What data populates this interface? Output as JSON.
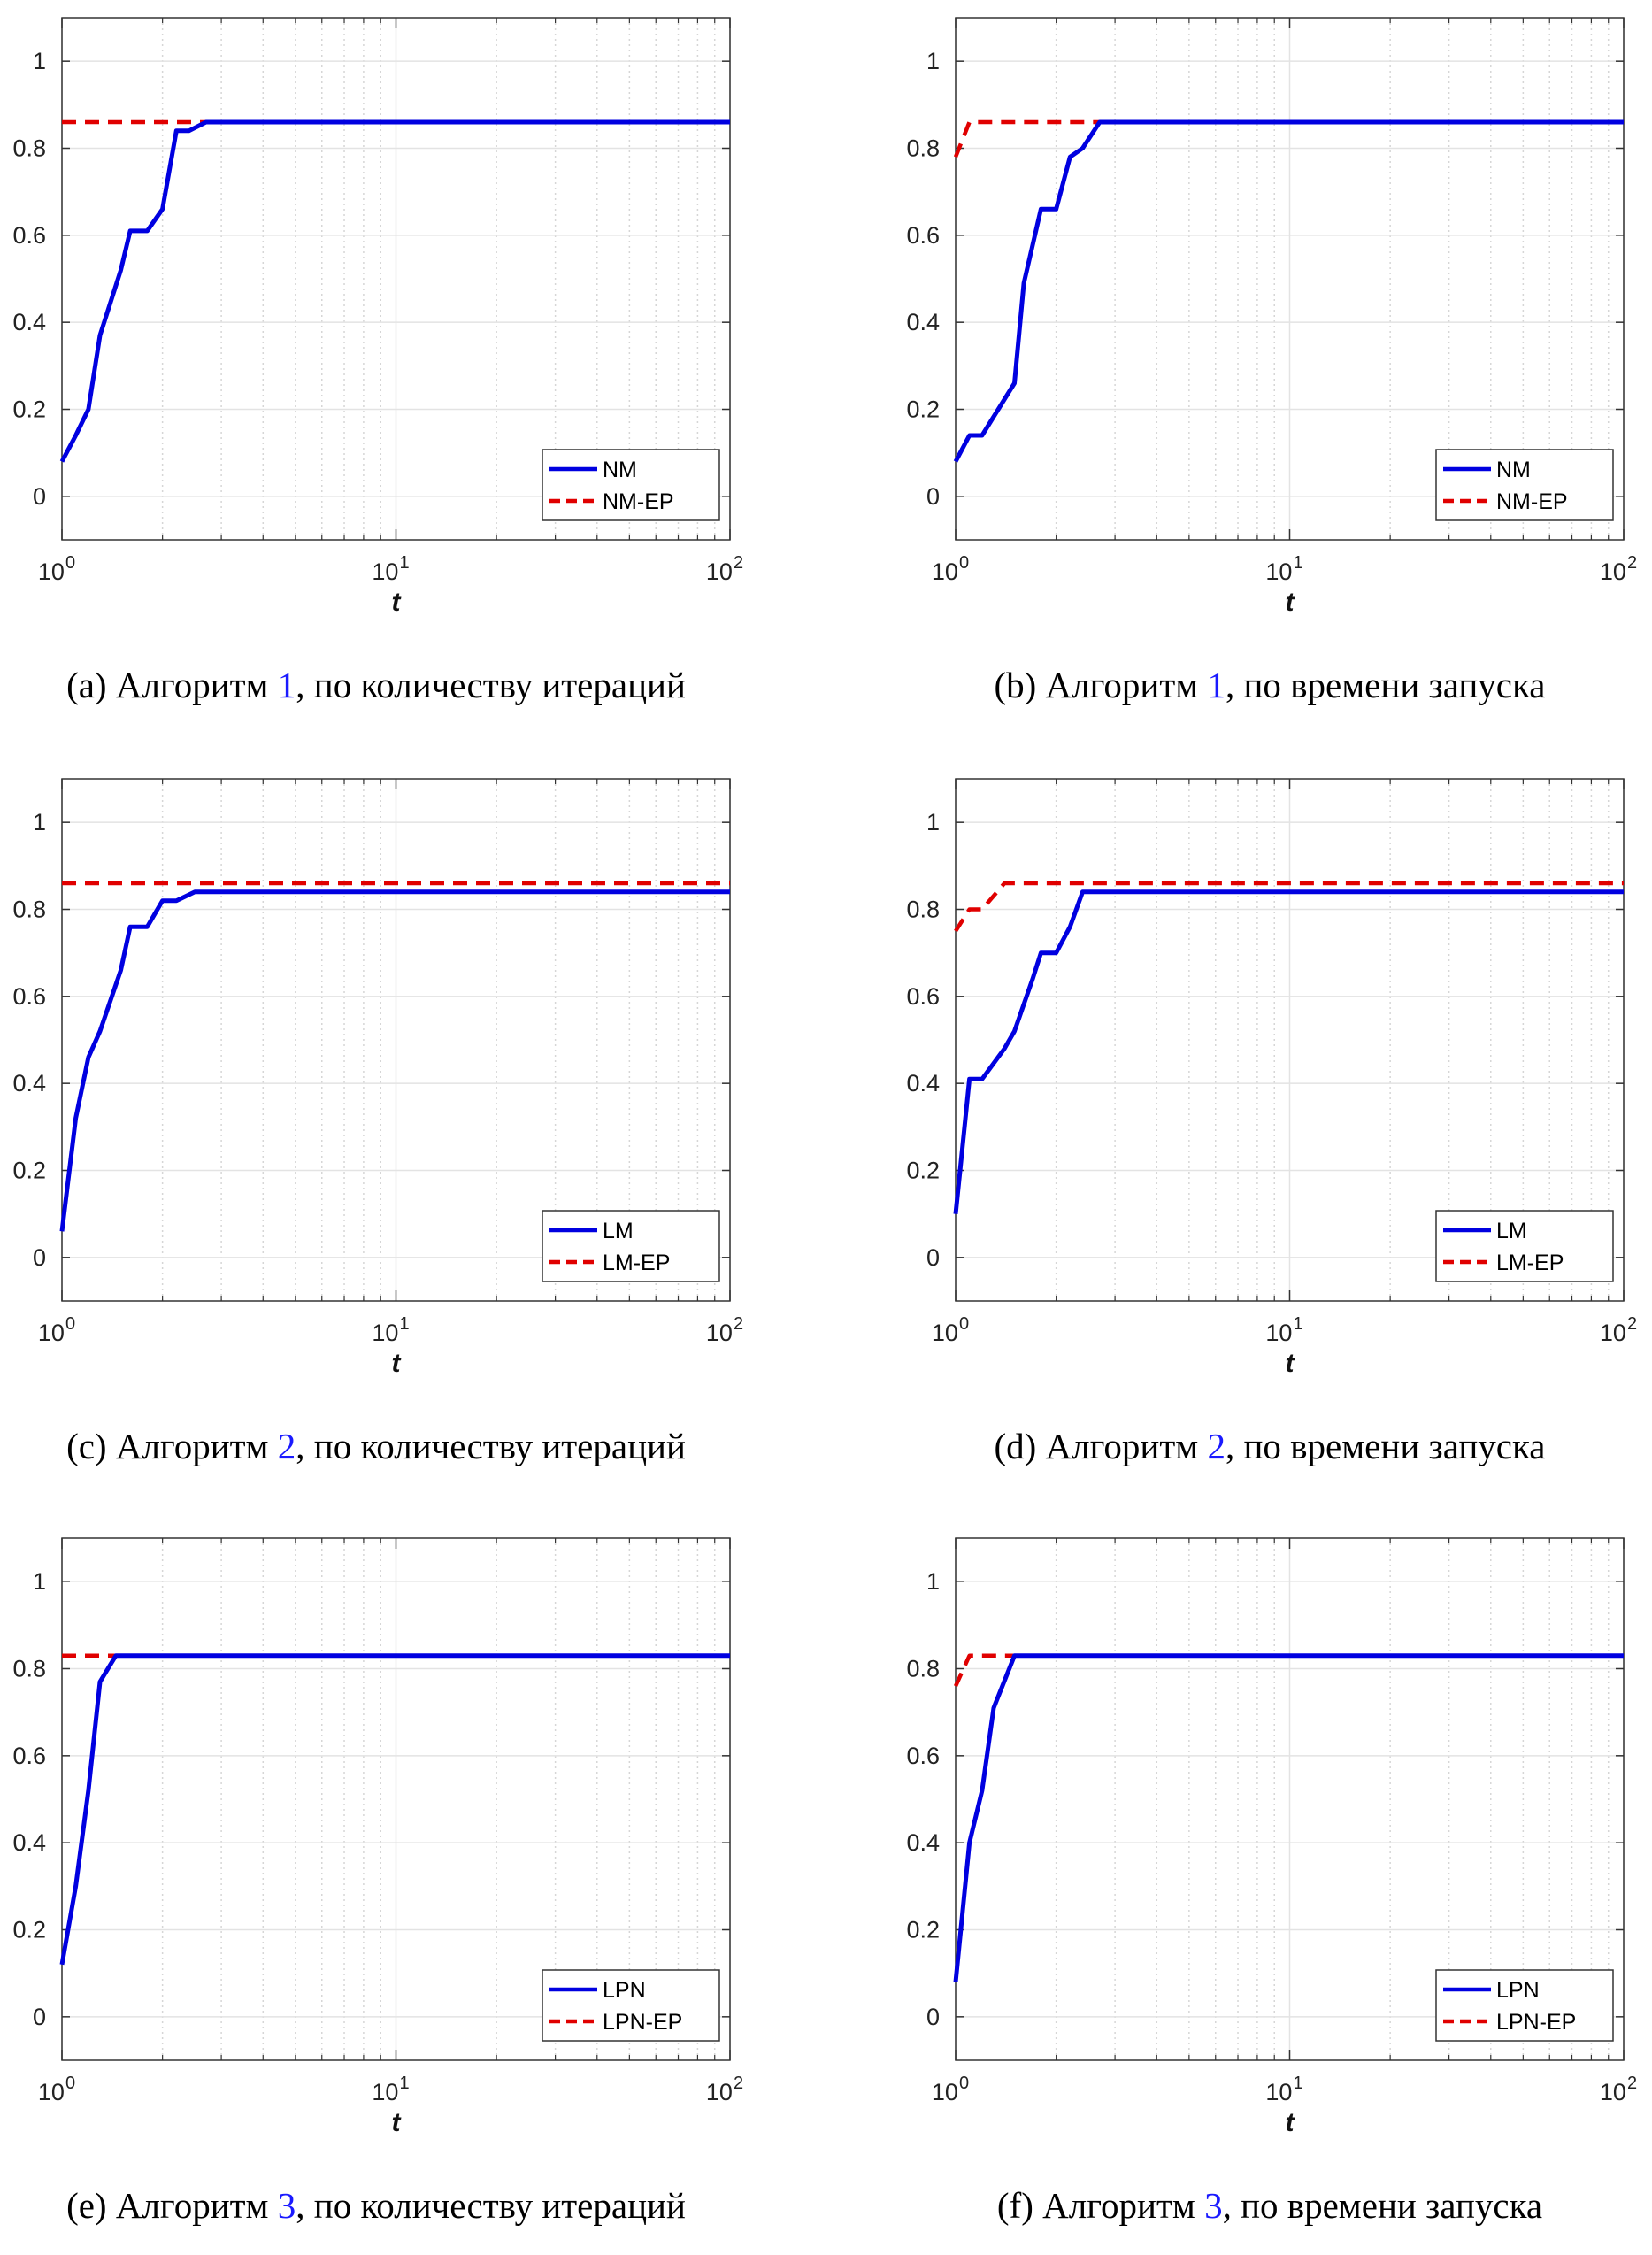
{
  "chart_data": [
    {
      "type": "line",
      "caption": {
        "prefix": "(a) Алгоритм ",
        "ref": "1",
        "suffix": ", по количеству итераций"
      },
      "xlabel": "t",
      "xscale": "log",
      "xlim": [
        1,
        100
      ],
      "ylim": [
        -0.1,
        1.1
      ],
      "yticks": [
        "0",
        "0.2",
        "0.4",
        "0.6",
        "0.8",
        "1"
      ],
      "xticks": [
        {
          "base": "10",
          "exp": "0"
        },
        {
          "base": "10",
          "exp": "1"
        },
        {
          "base": "10",
          "exp": "2"
        }
      ],
      "grid": true,
      "legend_position": "bottom-right",
      "series": [
        {
          "name": "NM",
          "color": "#0000e0",
          "dash": "solid",
          "points": [
            [
              1,
              0.08
            ],
            [
              1.1,
              0.14
            ],
            [
              1.2,
              0.2
            ],
            [
              1.3,
              0.37
            ],
            [
              1.5,
              0.52
            ],
            [
              1.6,
              0.61
            ],
            [
              1.8,
              0.61
            ],
            [
              2.0,
              0.66
            ],
            [
              2.2,
              0.84
            ],
            [
              2.4,
              0.84
            ],
            [
              2.7,
              0.86
            ],
            [
              100,
              0.86
            ]
          ]
        },
        {
          "name": "NM-EP",
          "color": "#e00000",
          "dash": "dashed",
          "points": [
            [
              1,
              0.86
            ],
            [
              100,
              0.86
            ]
          ]
        }
      ]
    },
    {
      "type": "line",
      "caption": {
        "prefix": "(b) Алгоритм ",
        "ref": "1",
        "suffix": ", по времени запуска"
      },
      "xlabel": "t",
      "xscale": "log",
      "xlim": [
        1,
        100
      ],
      "ylim": [
        -0.1,
        1.1
      ],
      "yticks": [
        "0",
        "0.2",
        "0.4",
        "0.6",
        "0.8",
        "1"
      ],
      "xticks": [
        {
          "base": "10",
          "exp": "0"
        },
        {
          "base": "10",
          "exp": "1"
        },
        {
          "base": "10",
          "exp": "2"
        }
      ],
      "grid": true,
      "legend_position": "bottom-right",
      "series": [
        {
          "name": "NM",
          "color": "#0000e0",
          "dash": "solid",
          "points": [
            [
              1,
              0.08
            ],
            [
              1.1,
              0.14
            ],
            [
              1.2,
              0.14
            ],
            [
              1.5,
              0.26
            ],
            [
              1.6,
              0.49
            ],
            [
              1.8,
              0.66
            ],
            [
              2.0,
              0.66
            ],
            [
              2.2,
              0.78
            ],
            [
              2.4,
              0.8
            ],
            [
              2.7,
              0.86
            ],
            [
              100,
              0.86
            ]
          ]
        },
        {
          "name": "NM-EP",
          "color": "#e00000",
          "dash": "dashed",
          "points": [
            [
              1,
              0.78
            ],
            [
              1.1,
              0.86
            ],
            [
              100,
              0.86
            ]
          ]
        }
      ]
    },
    {
      "type": "line",
      "caption": {
        "prefix": "(c) Алгоритм ",
        "ref": "2",
        "suffix": ", по количеству итераций"
      },
      "xlabel": "t",
      "xscale": "log",
      "xlim": [
        1,
        100
      ],
      "ylim": [
        -0.1,
        1.1
      ],
      "yticks": [
        "0",
        "0.2",
        "0.4",
        "0.6",
        "0.8",
        "1"
      ],
      "xticks": [
        {
          "base": "10",
          "exp": "0"
        },
        {
          "base": "10",
          "exp": "1"
        },
        {
          "base": "10",
          "exp": "2"
        }
      ],
      "grid": true,
      "legend_position": "bottom-right",
      "series": [
        {
          "name": "LM",
          "color": "#0000e0",
          "dash": "solid",
          "points": [
            [
              1,
              0.06
            ],
            [
              1.1,
              0.32
            ],
            [
              1.2,
              0.46
            ],
            [
              1.3,
              0.52
            ],
            [
              1.5,
              0.66
            ],
            [
              1.6,
              0.76
            ],
            [
              1.8,
              0.76
            ],
            [
              2.0,
              0.82
            ],
            [
              2.2,
              0.82
            ],
            [
              2.5,
              0.84
            ],
            [
              100,
              0.84
            ]
          ]
        },
        {
          "name": "LM-EP",
          "color": "#e00000",
          "dash": "dashed",
          "points": [
            [
              1,
              0.86
            ],
            [
              100,
              0.86
            ]
          ]
        }
      ]
    },
    {
      "type": "line",
      "caption": {
        "prefix": "(d) Алгоритм ",
        "ref": "2",
        "suffix": ", по времени запуска"
      },
      "xlabel": "t",
      "xscale": "log",
      "xlim": [
        1,
        100
      ],
      "ylim": [
        -0.1,
        1.1
      ],
      "yticks": [
        "0",
        "0.2",
        "0.4",
        "0.6",
        "0.8",
        "1"
      ],
      "xticks": [
        {
          "base": "10",
          "exp": "0"
        },
        {
          "base": "10",
          "exp": "1"
        },
        {
          "base": "10",
          "exp": "2"
        }
      ],
      "grid": true,
      "legend_position": "bottom-right",
      "series": [
        {
          "name": "LM",
          "color": "#0000e0",
          "dash": "solid",
          "points": [
            [
              1,
              0.1
            ],
            [
              1.1,
              0.41
            ],
            [
              1.2,
              0.41
            ],
            [
              1.4,
              0.48
            ],
            [
              1.5,
              0.52
            ],
            [
              1.7,
              0.64
            ],
            [
              1.8,
              0.7
            ],
            [
              2.0,
              0.7
            ],
            [
              2.2,
              0.76
            ],
            [
              2.4,
              0.84
            ],
            [
              100,
              0.84
            ]
          ]
        },
        {
          "name": "LM-EP",
          "color": "#e00000",
          "dash": "dashed",
          "points": [
            [
              1,
              0.75
            ],
            [
              1.1,
              0.8
            ],
            [
              1.2,
              0.8
            ],
            [
              1.4,
              0.86
            ],
            [
              100,
              0.86
            ]
          ]
        }
      ]
    },
    {
      "type": "line",
      "caption": {
        "prefix": "(e) Алгоритм ",
        "ref": "3",
        "suffix": ", по количеству итераций"
      },
      "xlabel": "t",
      "xscale": "log",
      "xlim": [
        1,
        100
      ],
      "ylim": [
        -0.1,
        1.1
      ],
      "yticks": [
        "0",
        "0.2",
        "0.4",
        "0.6",
        "0.8",
        "1"
      ],
      "xticks": [
        {
          "base": "10",
          "exp": "0"
        },
        {
          "base": "10",
          "exp": "1"
        },
        {
          "base": "10",
          "exp": "2"
        }
      ],
      "grid": true,
      "legend_position": "bottom-right",
      "series": [
        {
          "name": "LPN",
          "color": "#0000e0",
          "dash": "solid",
          "points": [
            [
              1,
              0.12
            ],
            [
              1.1,
              0.3
            ],
            [
              1.2,
              0.52
            ],
            [
              1.3,
              0.77
            ],
            [
              1.45,
              0.83
            ],
            [
              100,
              0.83
            ]
          ]
        },
        {
          "name": "LPN-EP",
          "color": "#e00000",
          "dash": "dashed",
          "points": [
            [
              1,
              0.83
            ],
            [
              100,
              0.83
            ]
          ]
        }
      ]
    },
    {
      "type": "line",
      "caption": {
        "prefix": "(f) Алгоритм ",
        "ref": "3",
        "suffix": ", по времени запуска"
      },
      "xlabel": "t",
      "xscale": "log",
      "xlim": [
        1,
        100
      ],
      "ylim": [
        -0.1,
        1.1
      ],
      "yticks": [
        "0",
        "0.2",
        "0.4",
        "0.6",
        "0.8",
        "1"
      ],
      "xticks": [
        {
          "base": "10",
          "exp": "0"
        },
        {
          "base": "10",
          "exp": "1"
        },
        {
          "base": "10",
          "exp": "2"
        }
      ],
      "grid": true,
      "legend_position": "bottom-right",
      "series": [
        {
          "name": "LPN",
          "color": "#0000e0",
          "dash": "solid",
          "points": [
            [
              1,
              0.08
            ],
            [
              1.1,
              0.4
            ],
            [
              1.2,
              0.52
            ],
            [
              1.3,
              0.71
            ],
            [
              1.5,
              0.83
            ],
            [
              100,
              0.83
            ]
          ]
        },
        {
          "name": "LPN-EP",
          "color": "#e00000",
          "dash": "dashed",
          "points": [
            [
              1,
              0.76
            ],
            [
              1.1,
              0.83
            ],
            [
              100,
              0.83
            ]
          ]
        }
      ]
    }
  ]
}
